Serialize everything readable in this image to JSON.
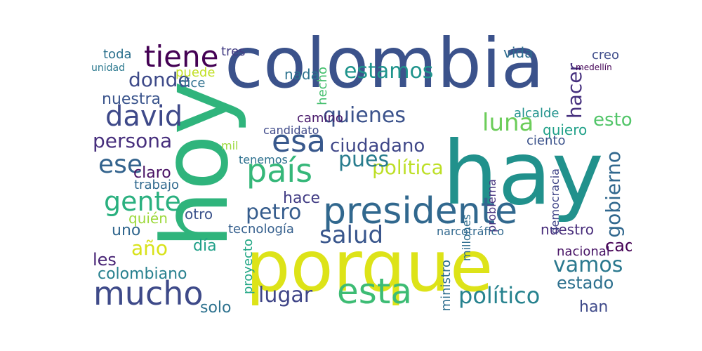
{
  "words": [
    {
      "t": "colombia",
      "c": "#3b528b"
    },
    {
      "t": "hay",
      "c": "#21918c"
    },
    {
      "t": "porque",
      "c": "#dde318"
    },
    {
      "t": "hoy",
      "c": "#2fb47c"
    },
    {
      "t": "presidente",
      "c": "#31688e"
    },
    {
      "t": "país",
      "c": "#35b779"
    },
    {
      "t": "esta",
      "c": "#3dbc74"
    },
    {
      "t": "mucho",
      "c": "#3e4a89"
    },
    {
      "t": "esa",
      "c": "#38588c"
    },
    {
      "t": "tiene",
      "c": "#440154"
    },
    {
      "t": "david",
      "c": "#3e4989"
    },
    {
      "t": "gente",
      "c": "#2ab07f"
    },
    {
      "t": "ese",
      "c": "#33638d"
    },
    {
      "t": "luna",
      "c": "#6ccd5a"
    },
    {
      "t": "salud",
      "c": "#39568c"
    },
    {
      "t": "petro",
      "c": "#365d8d"
    },
    {
      "t": "estamos",
      "c": "#1f948c"
    },
    {
      "t": "quienes",
      "c": "#3b528b"
    },
    {
      "t": "político",
      "c": "#26828e"
    },
    {
      "t": "lugar",
      "c": "#404688"
    },
    {
      "t": "vamos",
      "c": "#2a788e"
    },
    {
      "t": "donde",
      "c": "#3e4a89"
    },
    {
      "t": "política",
      "c": "#bddf26"
    },
    {
      "t": "año",
      "c": "#d8e219"
    },
    {
      "t": "gobierno",
      "c": "#31688e"
    },
    {
      "t": "persona",
      "c": "#472f7d"
    },
    {
      "t": "pues",
      "c": "#287c8e"
    },
    {
      "t": "ciudadano",
      "c": "#3f4788"
    },
    {
      "t": "hacer",
      "c": "#46307e"
    },
    {
      "t": "colombiano",
      "c": "#27808e"
    },
    {
      "t": "esto",
      "c": "#52c569"
    },
    {
      "t": "cada",
      "c": "#440154"
    },
    {
      "t": "les",
      "c": "#482475"
    },
    {
      "t": "estado",
      "c": "#2d708e"
    },
    {
      "t": "hace",
      "c": "#433e85"
    },
    {
      "t": "día",
      "c": "#1fa088"
    },
    {
      "t": "uno",
      "c": "#31678e"
    },
    {
      "t": "quién",
      "c": "#9dd93b"
    },
    {
      "t": "otro",
      "c": "#3b528b"
    },
    {
      "t": "solo",
      "c": "#2c718e"
    },
    {
      "t": "han",
      "c": "#3e4989"
    },
    {
      "t": "tecnología",
      "c": "#355f8d"
    },
    {
      "t": "nuestra",
      "c": "#3a548c"
    },
    {
      "t": "puede",
      "c": "#c2df23"
    },
    {
      "t": "dice",
      "c": "#2d708e"
    },
    {
      "t": "claro",
      "c": "#471063"
    },
    {
      "t": "trabajo",
      "c": "#30698e"
    },
    {
      "t": "vida",
      "c": "#2e6d8e"
    },
    {
      "t": "nada",
      "c": "#2c728e"
    },
    {
      "t": "tres",
      "c": "#433d84"
    },
    {
      "t": "toda",
      "c": "#2c718e"
    },
    {
      "t": "unidad",
      "c": "#2a788e"
    },
    {
      "t": "hecho",
      "c": "#46c06f"
    },
    {
      "t": "camino",
      "c": "#48186a"
    },
    {
      "t": "candidato",
      "c": "#3e4989"
    },
    {
      "t": "alcalde",
      "c": "#20928c"
    },
    {
      "t": "quiero",
      "c": "#1fa088"
    },
    {
      "t": "ciento",
      "c": "#3b528b"
    },
    {
      "t": "creo",
      "c": "#3e4c8a"
    },
    {
      "t": "nuestro",
      "c": "#472c7a"
    },
    {
      "t": "nacional",
      "c": "#471365"
    },
    {
      "t": "ministro",
      "c": "#2e6e8e"
    },
    {
      "t": "mil",
      "c": "#9bd93c"
    },
    {
      "t": "tenemos",
      "c": "#2d708e"
    },
    {
      "t": "proyecto",
      "c": "#22a785"
    },
    {
      "t": "democracia",
      "c": "#404588"
    },
    {
      "t": "problema",
      "c": "#46337f"
    },
    {
      "t": "millones",
      "c": "#2e6d8e"
    },
    {
      "t": "narcotráfico",
      "c": "#31688e"
    },
    {
      "t": "medellín",
      "c": "#450457"
    },
    {
      "t": "hacer2",
      "c": "#ffffff"
    }
  ]
}
